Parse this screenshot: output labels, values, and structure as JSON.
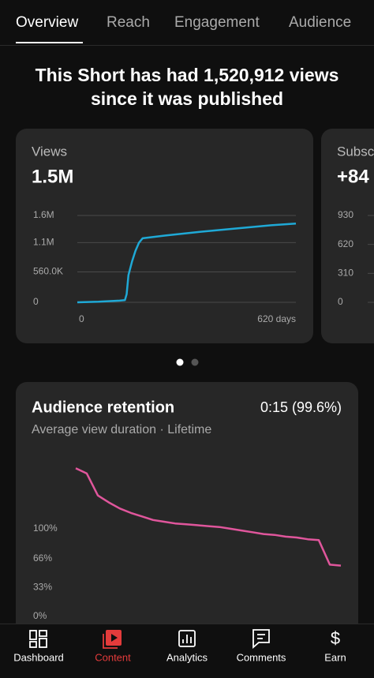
{
  "tabs": [
    "Overview",
    "Reach",
    "Engagement",
    "Audience"
  ],
  "headline": [
    "This Short has had 1,520,912 views",
    "since it was published"
  ],
  "cards": [
    {
      "title": "Views",
      "value": "1.5M",
      "chart": {
        "type": "line",
        "color": "#1fa9d6",
        "xlim": [
          0,
          620
        ],
        "xticks": [
          0,
          {
            "value": 620,
            "label": "620 days"
          }
        ],
        "ylim": [
          0,
          1600000
        ],
        "yticks": [
          {
            "value": 1600000,
            "label": "1.6M"
          },
          {
            "value": 1100000,
            "label": "1.1M"
          },
          {
            "value": 560000,
            "label": "560.0K"
          },
          0
        ],
        "grid": true,
        "x": [
          0,
          60,
          120,
          135,
          140,
          145,
          155,
          165,
          175,
          185,
          250,
          350,
          450,
          550,
          620
        ],
        "values": [
          0,
          10000,
          30000,
          40000,
          150000,
          500000,
          750000,
          950000,
          1100000,
          1180000,
          1230000,
          1300000,
          1360000,
          1420000,
          1450000
        ]
      }
    },
    {
      "title": "Subscribers",
      "value": "+84",
      "chart": {
        "type": "line",
        "ylim": [
          0,
          930
        ],
        "yticks": [
          930,
          620,
          310,
          0
        ],
        "grid": true
      }
    }
  ],
  "retention": {
    "title": "Audience retention",
    "value": "0:15 (99.6%)",
    "subtitle": "Average view duration · Lifetime",
    "chart": {
      "type": "line",
      "color": "#e0569c",
      "ylim": [
        0,
        180
      ],
      "yticks": [
        {
          "value": 100,
          "label": "100%"
        },
        {
          "value": 66,
          "label": "66%"
        },
        {
          "value": 33,
          "label": "33%"
        },
        {
          "value": 0,
          "label": "0%"
        }
      ],
      "grid": false,
      "values": [
        169,
        163,
        138,
        130,
        123,
        118,
        114,
        110,
        108,
        106,
        105,
        104,
        103,
        102,
        100,
        98,
        96,
        94,
        93,
        91,
        90,
        88,
        87,
        59,
        58
      ]
    }
  },
  "nav": [
    "Dashboard",
    "Content",
    "Analytics",
    "Comments",
    "Earn"
  ]
}
